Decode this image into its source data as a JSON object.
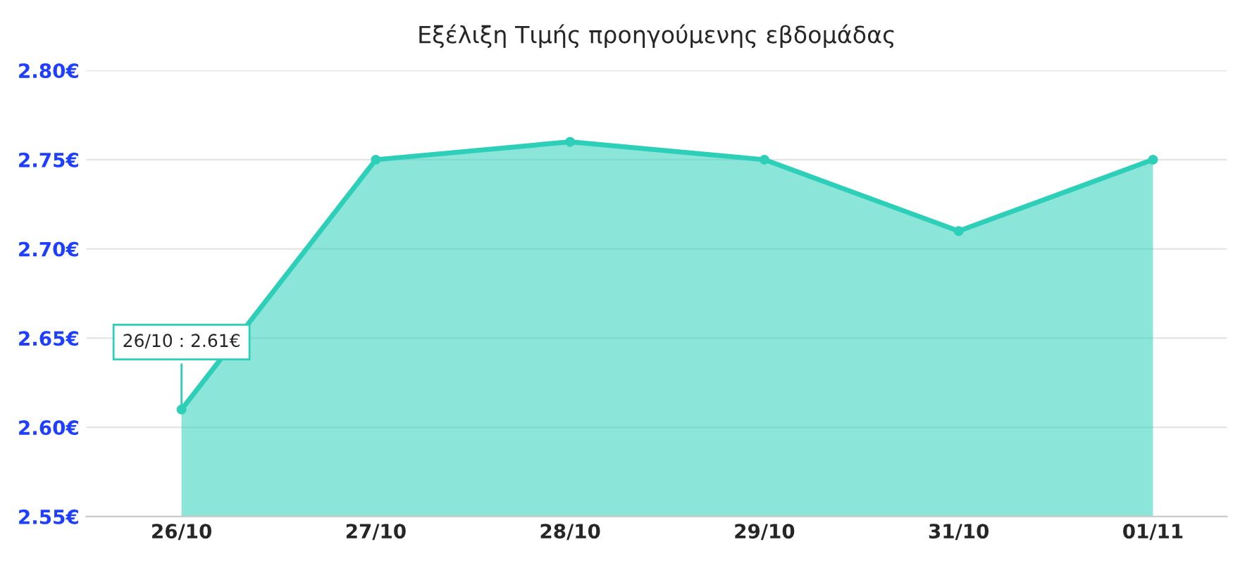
{
  "chart_data": {
    "type": "area",
    "title": "Εξέλιξη Τιμής προηγούμενης εβδομάδας",
    "categories": [
      "26/10",
      "27/10",
      "28/10",
      "29/10",
      "31/10",
      "01/11"
    ],
    "series": [
      {
        "color": "#2dcfb9",
        "values": [
          2.61,
          2.75,
          2.76,
          2.75,
          2.71,
          2.75
        ]
      }
    ],
    "ylim": [
      2.55,
      2.8
    ],
    "yticks": [
      {
        "value": 2.55,
        "label": "2.55€"
      },
      {
        "value": 2.6,
        "label": "2.60€"
      },
      {
        "value": 2.65,
        "label": "2.65€"
      },
      {
        "value": 2.7,
        "label": "2.70€"
      },
      {
        "value": 2.75,
        "label": "2.75€"
      },
      {
        "value": 2.8,
        "label": "2.80€"
      }
    ],
    "grid": "y",
    "marker": "circle",
    "legend": false,
    "annotations": [
      {
        "text": "26/10 : 2.61€",
        "x": "26/10",
        "y": 2.61
      }
    ]
  }
}
